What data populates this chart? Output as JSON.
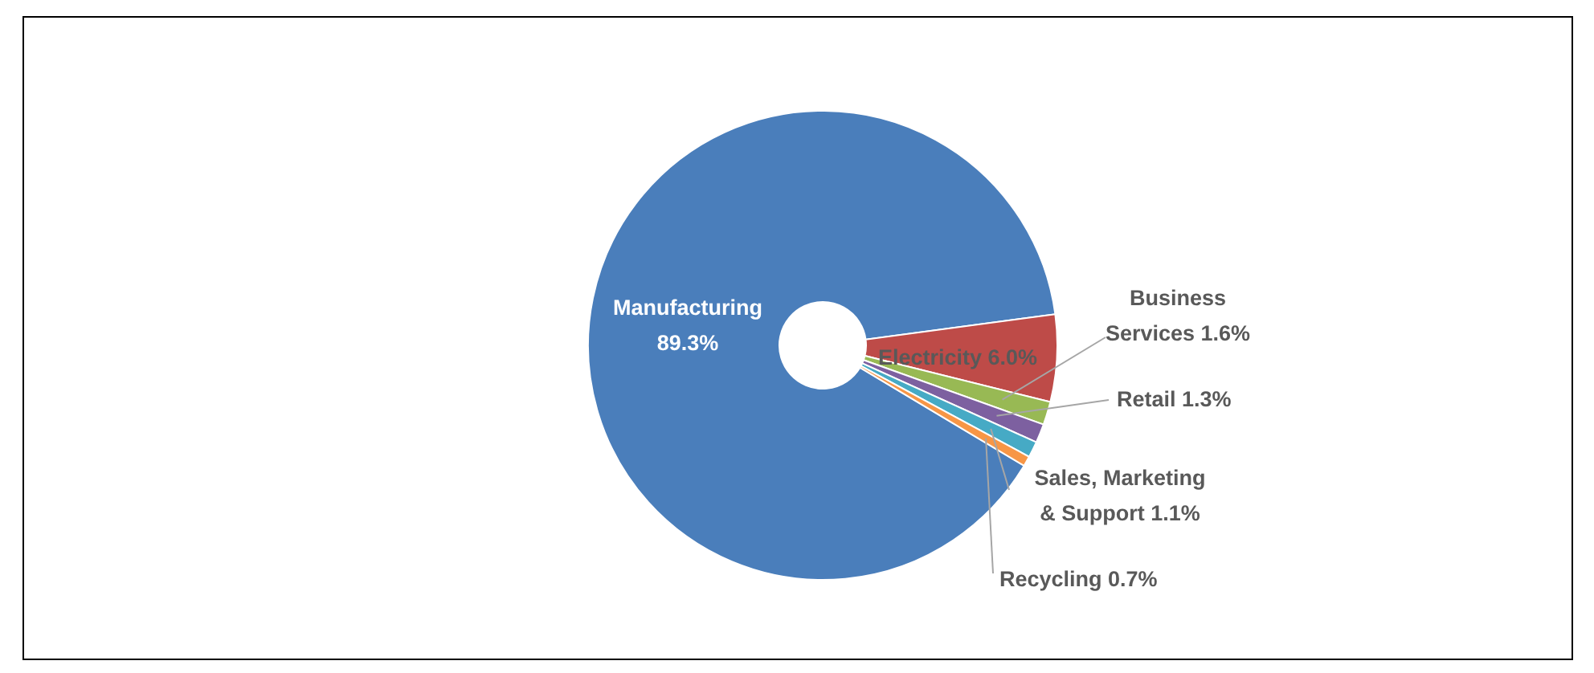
{
  "chart_data": {
    "type": "donut",
    "categories": [
      "Manufacturing",
      "Electricity",
      "Business Services",
      "Retail",
      "Sales, Marketing & Support",
      "Recycling"
    ],
    "values": [
      89.3,
      6.0,
      1.6,
      1.3,
      1.1,
      0.7
    ],
    "colors": [
      "#4a7ebb",
      "#be4b48",
      "#98b954",
      "#7d60a0",
      "#46aac5",
      "#f79646"
    ],
    "value_labels": [
      "89.3%",
      "6.0%",
      "1.6%",
      "1.3%",
      "1.1%",
      "0.7%"
    ]
  }
}
